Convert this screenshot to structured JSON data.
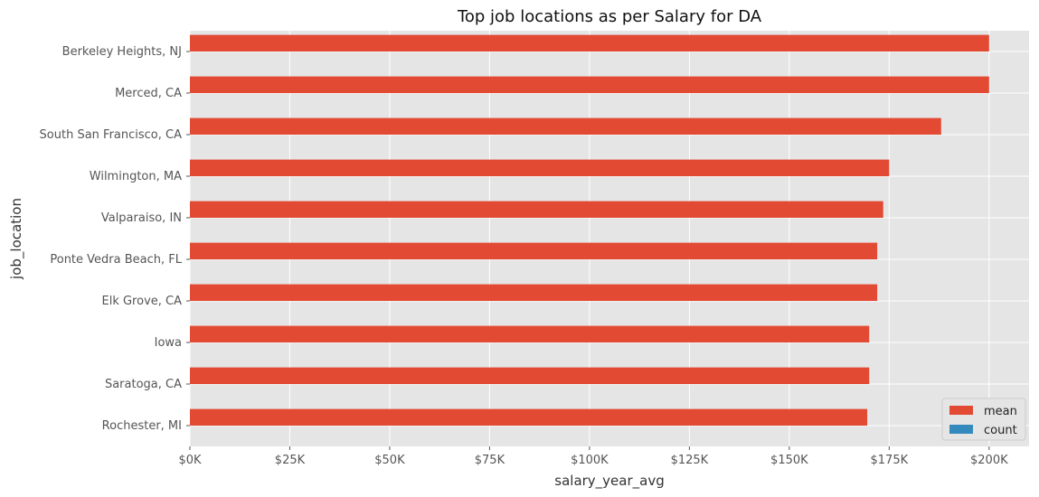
{
  "chart_data": {
    "type": "bar",
    "orientation": "horizontal",
    "title": "Top job locations as per Salary for DA",
    "xlabel": "salary_year_avg",
    "ylabel": "job_location",
    "categories": [
      "Berkeley Heights, NJ",
      "Merced, CA",
      "South San Francisco, CA",
      "Wilmington, MA",
      "Valparaiso, IN",
      "Ponte Vedra Beach, FL",
      "Elk Grove, CA",
      "Iowa",
      "Saratoga, CA",
      "Rochester, MI"
    ],
    "series": [
      {
        "name": "mean",
        "color": "#e24a33",
        "values": [
          200000,
          200000,
          188000,
          175000,
          173500,
          172000,
          172000,
          170000,
          170000,
          169500
        ]
      },
      {
        "name": "count",
        "color": "#348abd",
        "values": [
          1,
          1,
          1,
          1,
          1,
          1,
          1,
          1,
          1,
          1
        ]
      }
    ],
    "xticks": [
      0,
      25000,
      50000,
      75000,
      100000,
      125000,
      150000,
      175000,
      200000
    ],
    "xtick_labels": [
      "$0K",
      "$25K",
      "$50K",
      "$75K",
      "$100K",
      "$125K",
      "$150K",
      "$175K",
      "$200K"
    ],
    "xlim": [
      0,
      210000
    ],
    "grid": true,
    "legend_position": "lower-right",
    "background": "#e5e5e5"
  }
}
